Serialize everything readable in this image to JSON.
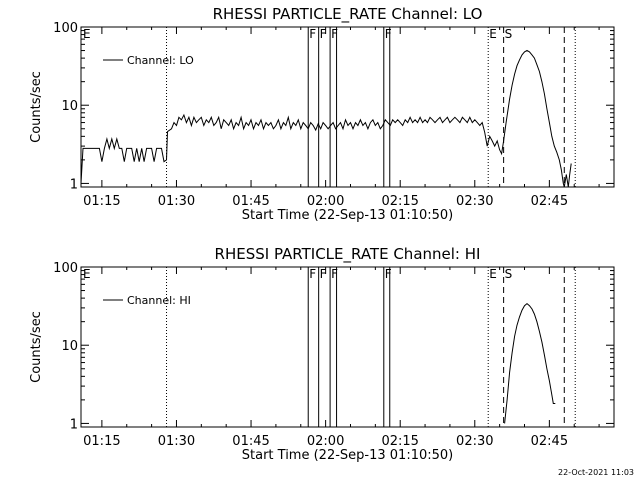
{
  "footer": {
    "date": "22-Oct-2021 11:03"
  },
  "chart_data": [
    {
      "type": "line",
      "title": "RHESSI PARTICLE_RATE Channel: LO",
      "xlabel": "Start Time (22-Sep-13 01:10:50)",
      "ylabel": "Counts/sec",
      "yscale": "log",
      "ylim": [
        0.9,
        100
      ],
      "xlim_minutes": [
        70.8,
        178
      ],
      "xticks": [
        {
          "t": 75,
          "label": "01:15"
        },
        {
          "t": 90,
          "label": "01:30"
        },
        {
          "t": 105,
          "label": "01:45"
        },
        {
          "t": 120,
          "label": "02:00"
        },
        {
          "t": 135,
          "label": "02:15"
        },
        {
          "t": 150,
          "label": "02:30"
        },
        {
          "t": 165,
          "label": "02:45"
        }
      ],
      "yticks": [
        {
          "v": 1,
          "label": "1"
        },
        {
          "v": 10,
          "label": "10"
        },
        {
          "v": 100,
          "label": "100"
        }
      ],
      "legend": {
        "label": "Channel: LO",
        "position": "top-left"
      },
      "markers": [
        {
          "t": 71.0,
          "label": "E",
          "style": "none"
        },
        {
          "t": 88.0,
          "label": "",
          "style": "dotted"
        },
        {
          "t": 116.5,
          "label": "F",
          "style": "solid"
        },
        {
          "t": 118.6,
          "label": "F",
          "style": "solid"
        },
        {
          "t": 120.9,
          "label": "F",
          "style": "solid"
        },
        {
          "t": 122.2,
          "label": "",
          "style": "solid"
        },
        {
          "t": 131.7,
          "label": "F",
          "style": "solid"
        },
        {
          "t": 132.9,
          "label": "",
          "style": "solid"
        },
        {
          "t": 152.7,
          "label": "E",
          "style": "dotted"
        },
        {
          "t": 155.8,
          "label": "S",
          "style": "dashed"
        },
        {
          "t": 168.0,
          "label": "",
          "style": "dashed"
        },
        {
          "t": 170.2,
          "label": "",
          "style": "dotted"
        }
      ],
      "series": [
        {
          "values": [
            [
              70.8,
              1.0
            ],
            [
              71.2,
              2.8
            ],
            [
              74.5,
              2.8
            ],
            [
              75.0,
              1.9
            ],
            [
              75.5,
              2.8
            ],
            [
              76.0,
              3.7
            ],
            [
              76.5,
              2.8
            ],
            [
              77.0,
              3.7
            ],
            [
              77.5,
              2.8
            ],
            [
              78.0,
              3.7
            ],
            [
              78.5,
              2.8
            ],
            [
              79.0,
              2.8
            ],
            [
              79.5,
              1.9
            ],
            [
              80.0,
              2.8
            ],
            [
              80.5,
              2.8
            ],
            [
              81.0,
              2.8
            ],
            [
              81.5,
              1.9
            ],
            [
              82.0,
              2.8
            ],
            [
              82.5,
              1.9
            ],
            [
              83.0,
              2.8
            ],
            [
              83.5,
              1.9
            ],
            [
              84.0,
              2.8
            ],
            [
              84.5,
              2.8
            ],
            [
              85.0,
              2.8
            ],
            [
              85.5,
              1.9
            ],
            [
              86.0,
              2.8
            ],
            [
              86.5,
              2.8
            ],
            [
              87.0,
              2.8
            ],
            [
              87.5,
              1.9
            ],
            [
              88.0,
              2.0
            ],
            [
              88.2,
              4.6
            ],
            [
              89.0,
              5.0
            ],
            [
              89.5,
              6.0
            ],
            [
              90.0,
              5.5
            ],
            [
              90.5,
              7.0
            ],
            [
              91.0,
              6.5
            ],
            [
              91.5,
              7.5
            ],
            [
              92.0,
              6.0
            ],
            [
              92.5,
              7.0
            ],
            [
              93.0,
              5.5
            ],
            [
              93.5,
              7.0
            ],
            [
              94.0,
              6.0
            ],
            [
              94.5,
              6.5
            ],
            [
              95.0,
              7.0
            ],
            [
              95.5,
              5.5
            ],
            [
              96.0,
              6.5
            ],
            [
              96.5,
              6.0
            ],
            [
              97.0,
              7.0
            ],
            [
              97.5,
              5.5
            ],
            [
              98.0,
              6.0
            ],
            [
              98.5,
              7.0
            ],
            [
              99.0,
              5.0
            ],
            [
              99.5,
              6.5
            ],
            [
              100.0,
              6.0
            ],
            [
              100.5,
              5.5
            ],
            [
              101.0,
              6.5
            ],
            [
              101.5,
              5.0
            ],
            [
              102.0,
              6.0
            ],
            [
              102.5,
              5.5
            ],
            [
              103.0,
              7.0
            ],
            [
              103.5,
              5.0
            ],
            [
              104.0,
              6.0
            ],
            [
              104.5,
              5.5
            ],
            [
              105.0,
              6.5
            ],
            [
              105.5,
              5.0
            ],
            [
              106.0,
              6.0
            ],
            [
              106.5,
              5.5
            ],
            [
              107.0,
              6.5
            ],
            [
              107.5,
              5.0
            ],
            [
              108.0,
              6.0
            ],
            [
              108.5,
              5.5
            ],
            [
              109.0,
              6.0
            ],
            [
              109.5,
              5.0
            ],
            [
              110.0,
              5.5
            ],
            [
              110.5,
              6.5
            ],
            [
              111.0,
              5.0
            ],
            [
              111.5,
              6.0
            ],
            [
              112.0,
              5.5
            ],
            [
              112.5,
              7.0
            ],
            [
              113.0,
              5.0
            ],
            [
              113.5,
              6.0
            ],
            [
              114.0,
              5.5
            ],
            [
              114.5,
              6.5
            ],
            [
              115.0,
              5.0
            ],
            [
              115.5,
              6.0
            ],
            [
              116.0,
              5.5
            ],
            [
              116.5,
              5.0
            ],
            [
              117.0,
              6.0
            ],
            [
              117.5,
              5.5
            ],
            [
              118.0,
              4.8
            ],
            [
              118.5,
              5.8
            ],
            [
              119.0,
              5.0
            ],
            [
              119.5,
              6.0
            ],
            [
              120.0,
              5.5
            ],
            [
              120.5,
              5.0
            ],
            [
              121.0,
              5.5
            ],
            [
              121.5,
              6.0
            ],
            [
              122.0,
              5.0
            ],
            [
              122.5,
              5.5
            ],
            [
              123.0,
              6.0
            ],
            [
              123.5,
              5.0
            ],
            [
              124.0,
              6.5
            ],
            [
              124.5,
              5.5
            ],
            [
              125.0,
              6.0
            ],
            [
              125.5,
              5.0
            ],
            [
              126.0,
              6.0
            ],
            [
              126.5,
              5.5
            ],
            [
              127.0,
              6.5
            ],
            [
              127.5,
              5.5
            ],
            [
              128.0,
              6.0
            ],
            [
              128.5,
              5.0
            ],
            [
              129.0,
              6.0
            ],
            [
              129.5,
              6.5
            ],
            [
              130.0,
              5.5
            ],
            [
              130.5,
              6.0
            ],
            [
              131.0,
              5.0
            ],
            [
              131.5,
              5.5
            ],
            [
              132.0,
              6.5
            ],
            [
              132.5,
              6.0
            ],
            [
              133.0,
              5.5
            ],
            [
              133.5,
              6.5
            ],
            [
              134.0,
              6.0
            ],
            [
              134.5,
              6.5
            ],
            [
              135.0,
              6.0
            ],
            [
              135.5,
              5.5
            ],
            [
              136.0,
              6.5
            ],
            [
              136.5,
              6.0
            ],
            [
              137.0,
              7.0
            ],
            [
              137.5,
              6.0
            ],
            [
              138.0,
              6.5
            ],
            [
              138.5,
              6.0
            ],
            [
              139.0,
              7.0
            ],
            [
              139.5,
              6.0
            ],
            [
              140.0,
              6.5
            ],
            [
              140.5,
              6.0
            ],
            [
              141.0,
              7.0
            ],
            [
              141.5,
              6.5
            ],
            [
              142.0,
              6.0
            ],
            [
              142.5,
              6.5
            ],
            [
              143.0,
              7.0
            ],
            [
              143.5,
              6.0
            ],
            [
              144.0,
              6.5
            ],
            [
              144.5,
              7.0
            ],
            [
              145.0,
              6.0
            ],
            [
              145.5,
              6.5
            ],
            [
              146.0,
              7.0
            ],
            [
              146.5,
              6.5
            ],
            [
              147.0,
              6.0
            ],
            [
              147.5,
              7.0
            ],
            [
              148.0,
              6.5
            ],
            [
              148.5,
              6.0
            ],
            [
              149.0,
              7.0
            ],
            [
              149.5,
              6.0
            ],
            [
              150.0,
              6.5
            ],
            [
              150.5,
              6.0
            ],
            [
              151.0,
              5.5
            ],
            [
              151.5,
              6.0
            ],
            [
              152.0,
              4.5
            ],
            [
              152.5,
              3.0
            ],
            [
              153.0,
              4.0
            ],
            [
              153.5,
              3.5
            ],
            [
              154.0,
              3.0
            ],
            [
              154.5,
              3.5
            ],
            [
              155.0,
              2.7
            ],
            [
              155.4,
              2.4
            ],
            [
              155.8,
              3.5
            ],
            [
              156.3,
              6.0
            ],
            [
              157.0,
              12.0
            ],
            [
              157.5,
              18.0
            ],
            [
              158.0,
              25.0
            ],
            [
              158.5,
              32.0
            ],
            [
              159.0,
              38.0
            ],
            [
              159.5,
              44.0
            ],
            [
              160.0,
              48.0
            ],
            [
              160.5,
              50.0
            ],
            [
              161.0,
              48.0
            ],
            [
              161.5,
              44.0
            ],
            [
              162.0,
              40.0
            ],
            [
              162.5,
              33.0
            ],
            [
              163.0,
              27.0
            ],
            [
              163.5,
              20.0
            ],
            [
              164.0,
              14.0
            ],
            [
              164.5,
              9.0
            ],
            [
              165.0,
              6.0
            ],
            [
              165.5,
              4.0
            ],
            [
              166.0,
              3.0
            ],
            [
              166.5,
              2.5
            ],
            [
              167.0,
              2.0
            ],
            [
              167.4,
              1.5
            ],
            [
              167.8,
              1.0
            ],
            [
              168.0,
              0.9
            ],
            [
              168.4,
              1.3
            ],
            [
              168.8,
              0.9
            ],
            [
              169.1,
              1.3
            ],
            [
              169.4,
              1.8
            ]
          ]
        }
      ]
    },
    {
      "type": "line",
      "title": "RHESSI PARTICLE_RATE Channel: HI",
      "xlabel": "Start Time (22-Sep-13 01:10:50)",
      "ylabel": "Counts/sec",
      "yscale": "log",
      "ylim": [
        0.9,
        100
      ],
      "xlim_minutes": [
        70.8,
        178
      ],
      "xticks": [
        {
          "t": 75,
          "label": "01:15"
        },
        {
          "t": 90,
          "label": "01:30"
        },
        {
          "t": 105,
          "label": "01:45"
        },
        {
          "t": 120,
          "label": "02:00"
        },
        {
          "t": 135,
          "label": "02:15"
        },
        {
          "t": 150,
          "label": "02:30"
        },
        {
          "t": 165,
          "label": "02:45"
        }
      ],
      "yticks": [
        {
          "v": 1,
          "label": "1"
        },
        {
          "v": 10,
          "label": "10"
        },
        {
          "v": 100,
          "label": "100"
        }
      ],
      "legend": {
        "label": "Channel: HI",
        "position": "top-left"
      },
      "markers": [
        {
          "t": 71.0,
          "label": "E",
          "style": "none"
        },
        {
          "t": 88.0,
          "label": "",
          "style": "dotted"
        },
        {
          "t": 116.5,
          "label": "F",
          "style": "solid"
        },
        {
          "t": 118.6,
          "label": "F",
          "style": "solid"
        },
        {
          "t": 120.9,
          "label": "F",
          "style": "solid"
        },
        {
          "t": 122.2,
          "label": "",
          "style": "solid"
        },
        {
          "t": 131.7,
          "label": "F",
          "style": "solid"
        },
        {
          "t": 132.9,
          "label": "",
          "style": "solid"
        },
        {
          "t": 152.7,
          "label": "E",
          "style": "dotted"
        },
        {
          "t": 155.8,
          "label": "S",
          "style": "dashed"
        },
        {
          "t": 168.0,
          "label": "",
          "style": "dashed"
        },
        {
          "t": 170.2,
          "label": "",
          "style": "dotted"
        }
      ],
      "series": [
        {
          "values": [
            [
              156.0,
              1.0
            ],
            [
              156.5,
              2.0
            ],
            [
              157.0,
              4.5
            ],
            [
              157.5,
              8.0
            ],
            [
              158.0,
              13.0
            ],
            [
              158.5,
              18.0
            ],
            [
              159.0,
              23.0
            ],
            [
              159.5,
              28.0
            ],
            [
              160.0,
              32.0
            ],
            [
              160.5,
              34.0
            ],
            [
              161.0,
              32.0
            ],
            [
              161.5,
              29.0
            ],
            [
              162.0,
              25.0
            ],
            [
              162.5,
              20.0
            ],
            [
              163.0,
              15.0
            ],
            [
              163.5,
              11.0
            ],
            [
              164.0,
              7.5
            ],
            [
              164.5,
              5.0
            ],
            [
              165.0,
              3.5
            ],
            [
              165.4,
              2.5
            ],
            [
              165.8,
              1.8
            ],
            [
              166.2,
              1.8
            ]
          ]
        }
      ]
    }
  ]
}
